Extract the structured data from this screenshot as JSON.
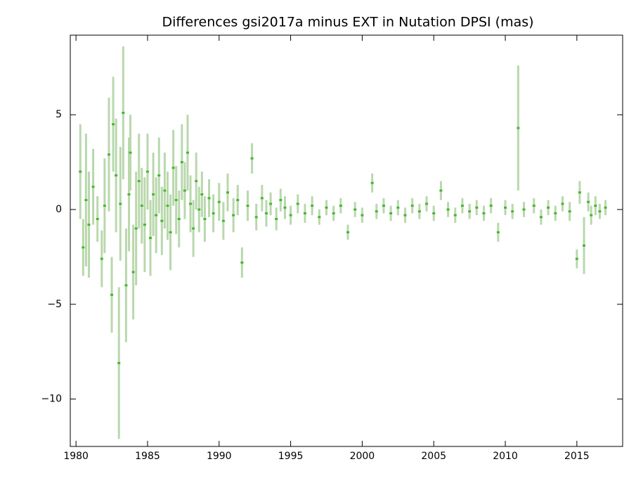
{
  "chart_data": {
    "type": "scatter",
    "title": "Differences gsi2017a minus EXT in Nutation DPSI (mas)",
    "x": [
      1980.3,
      1980.5,
      1980.7,
      1980.9,
      1981.2,
      1981.5,
      1981.8,
      1982.0,
      1982.3,
      1982.5,
      1982.6,
      1982.8,
      1983.0,
      1983.1,
      1983.3,
      1983.5,
      1983.7,
      1983.8,
      1984.0,
      1984.2,
      1984.4,
      1984.6,
      1984.8,
      1985.0,
      1985.2,
      1985.4,
      1985.6,
      1985.8,
      1986.0,
      1986.2,
      1986.4,
      1986.6,
      1986.8,
      1987.0,
      1987.2,
      1987.4,
      1987.6,
      1987.8,
      1988.0,
      1988.2,
      1988.4,
      1988.6,
      1988.8,
      1989.0,
      1989.3,
      1989.6,
      1990.0,
      1990.3,
      1990.6,
      1991.0,
      1991.3,
      1991.6,
      1992.0,
      1992.3,
      1992.6,
      1993.0,
      1993.3,
      1993.6,
      1994.0,
      1994.3,
      1994.6,
      1995.0,
      1995.5,
      1996.0,
      1996.5,
      1997.0,
      1997.5,
      1998.0,
      1998.5,
      1999.0,
      1999.5,
      2000.0,
      2000.7,
      2001.0,
      2001.5,
      2002.0,
      2002.5,
      2003.0,
      2003.5,
      2004.0,
      2004.5,
      2005.0,
      2005.5,
      2006.0,
      2006.5,
      2007.0,
      2007.5,
      2008.0,
      2008.5,
      2009.0,
      2009.5,
      2010.0,
      2010.5,
      2010.9,
      2011.3,
      2012.0,
      2012.5,
      2013.0,
      2013.5,
      2014.0,
      2014.5,
      2015.0,
      2015.2,
      2015.5,
      2015.8,
      2016.0,
      2016.3,
      2016.6,
      2017.0
    ],
    "series": [
      {
        "color": "#44b82a",
        "error_color": "#b9d8ad",
        "values": [
          2.0,
          -2.0,
          0.5,
          -0.8,
          1.2,
          -0.5,
          -2.6,
          0.2,
          2.9,
          -4.5,
          4.5,
          1.8,
          -8.1,
          0.3,
          5.1,
          -4.0,
          0.8,
          3.0,
          -3.3,
          -1.0,
          1.5,
          0.2,
          -0.8,
          2.0,
          -1.5,
          0.8,
          -0.3,
          1.8,
          -0.6,
          1.0,
          0.2,
          -1.2,
          2.2,
          0.5,
          -0.5,
          2.5,
          1.0,
          3.0,
          0.3,
          -1.0,
          1.5,
          0.0,
          0.8,
          -0.5,
          0.6,
          -0.2,
          0.4,
          -0.6,
          0.9,
          -0.3,
          0.5,
          -2.8,
          0.2,
          2.7,
          -0.4,
          0.6,
          -0.2,
          0.3,
          -0.5,
          0.5,
          0.1,
          -0.3,
          0.3,
          -0.2,
          0.2,
          -0.4,
          0.1,
          -0.2,
          0.2,
          -1.2,
          0.0,
          -0.3,
          1.4,
          -0.1,
          0.2,
          -0.2,
          0.1,
          -0.3,
          0.2,
          -0.1,
          0.3,
          -0.2,
          1.0,
          0.0,
          -0.3,
          0.2,
          -0.1,
          0.1,
          -0.2,
          0.2,
          -1.2,
          0.1,
          -0.1,
          4.3,
          0.0,
          0.2,
          -0.4,
          0.1,
          -0.2,
          0.3,
          -0.1,
          -2.6,
          0.9,
          -1.9,
          0.4,
          -0.3,
          0.2,
          -0.1,
          0.1
        ],
        "errors": [
          2.5,
          1.5,
          3.5,
          2.8,
          2,
          1.2,
          1.5,
          2.5,
          3,
          2,
          2.5,
          3,
          4,
          3,
          3.5,
          3,
          3,
          2,
          2.5,
          3,
          2.5,
          2,
          2.5,
          2,
          2,
          2.2,
          2,
          2,
          1.8,
          2,
          1.8,
          2,
          2,
          1.8,
          1.5,
          2,
          1.5,
          2,
          1.5,
          1.5,
          1.5,
          1.2,
          1.2,
          1.2,
          1,
          1,
          1,
          1,
          1,
          0.9,
          0.8,
          0.8,
          0.8,
          0.8,
          0.7,
          0.7,
          0.7,
          0.6,
          0.6,
          0.6,
          0.6,
          0.5,
          0.5,
          0.5,
          0.5,
          0.4,
          0.4,
          0.4,
          0.4,
          0.4,
          0.4,
          0.4,
          0.5,
          0.4,
          0.4,
          0.4,
          0.4,
          0.4,
          0.4,
          0.4,
          0.4,
          0.4,
          0.5,
          0.4,
          0.4,
          0.4,
          0.4,
          0.4,
          0.4,
          0.4,
          0.5,
          0.4,
          0.4,
          3.3,
          0.4,
          0.4,
          0.4,
          0.4,
          0.4,
          0.4,
          0.5,
          0.5,
          0.6,
          1.5,
          0.5,
          0.5,
          0.5,
          0.4,
          0.4
        ]
      }
    ],
    "xlim": [
      1979.6,
      2018.2
    ],
    "ylim": [
      -12.5,
      9.2
    ],
    "xticks": [
      1980,
      1985,
      1990,
      1995,
      2000,
      2005,
      2010,
      2015
    ],
    "yticks": [
      {
        "value": -10,
        "label": "−10"
      },
      {
        "value": -5,
        "label": "−5"
      },
      0,
      5
    ]
  }
}
